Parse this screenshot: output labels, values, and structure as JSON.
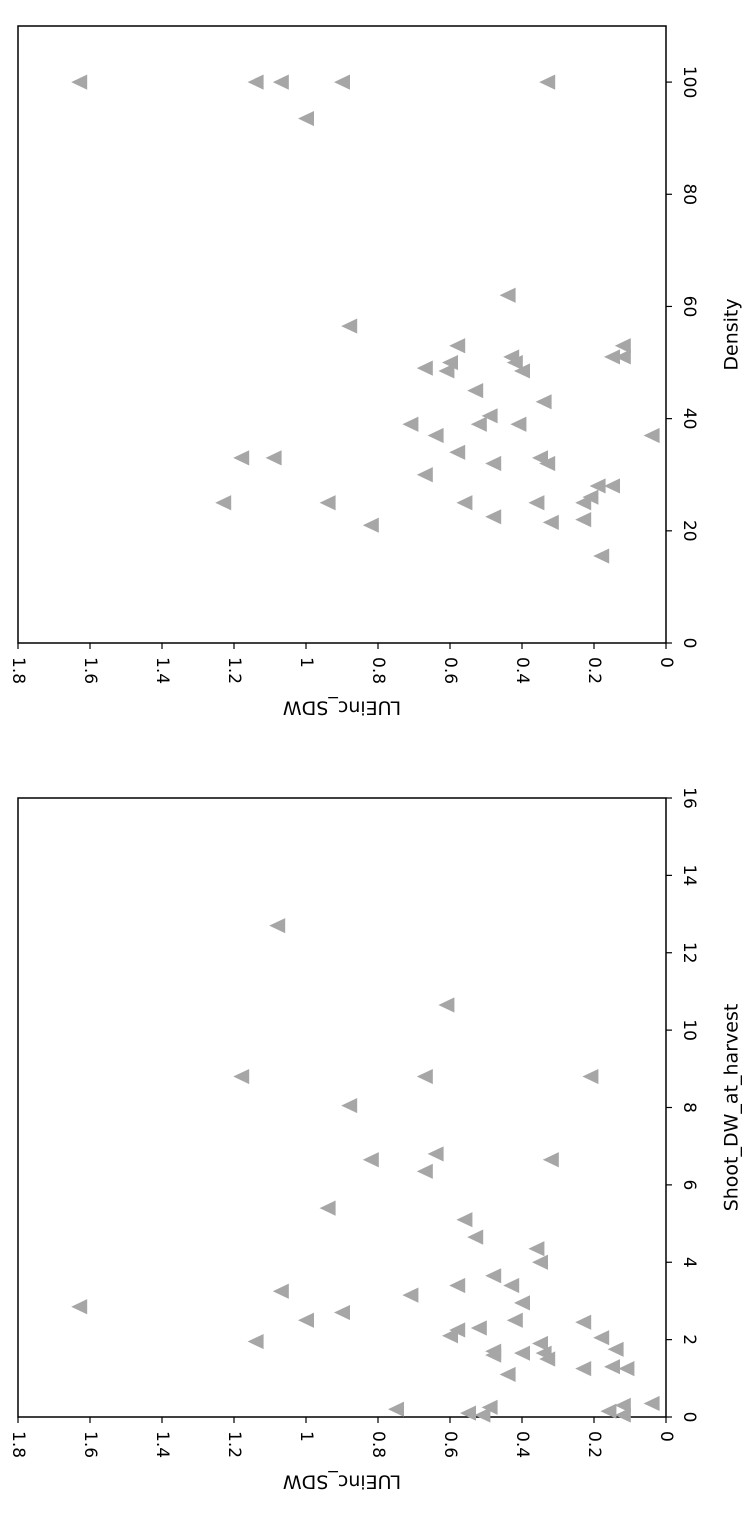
{
  "figure": {
    "rotation": "90 degrees clockwise",
    "marker": "triangle",
    "marker_color": "#a6a6a6",
    "axis_color": "#000000"
  },
  "chart_data": [
    {
      "type": "scatter",
      "title": "",
      "xlabel": "Density",
      "ylabel": "LUEinc_SDW",
      "xlim": [
        0,
        110
      ],
      "ylim": [
        0,
        1.8
      ],
      "xticks": [
        "0",
        "20",
        "40",
        "60",
        "80",
        "100"
      ],
      "yticks": [
        "0",
        "0.2",
        "0.4",
        "0.6",
        "0.8",
        "1",
        "1.2",
        "1.4",
        "1.6",
        "1.8"
      ],
      "grid": false,
      "points": [
        {
          "x": 100,
          "y": 1.63
        },
        {
          "x": 100,
          "y": 1.14
        },
        {
          "x": 100,
          "y": 1.07
        },
        {
          "x": 100,
          "y": 0.9
        },
        {
          "x": 100,
          "y": 0.33
        },
        {
          "x": 93.5,
          "y": 1.0
        },
        {
          "x": 62,
          "y": 0.44
        },
        {
          "x": 56.5,
          "y": 0.88
        },
        {
          "x": 53,
          "y": 0.58
        },
        {
          "x": 53,
          "y": 0.12
        },
        {
          "x": 51,
          "y": 0.43
        },
        {
          "x": 51,
          "y": 0.15
        },
        {
          "x": 51,
          "y": 0.12
        },
        {
          "x": 50,
          "y": 0.6
        },
        {
          "x": 50,
          "y": 0.42
        },
        {
          "x": 49,
          "y": 0.67
        },
        {
          "x": 48.5,
          "y": 0.61
        },
        {
          "x": 48.5,
          "y": 0.4
        },
        {
          "x": 45,
          "y": 0.53
        },
        {
          "x": 43,
          "y": 0.34
        },
        {
          "x": 40.5,
          "y": 0.49
        },
        {
          "x": 39,
          "y": 0.71
        },
        {
          "x": 39,
          "y": 0.52
        },
        {
          "x": 39,
          "y": 0.41
        },
        {
          "x": 37,
          "y": 0.64
        },
        {
          "x": 37,
          "y": 0.04
        },
        {
          "x": 34,
          "y": 0.58
        },
        {
          "x": 33,
          "y": 1.18
        },
        {
          "x": 33,
          "y": 1.09
        },
        {
          "x": 33,
          "y": 0.35
        },
        {
          "x": 32,
          "y": 0.48
        },
        {
          "x": 32,
          "y": 0.33
        },
        {
          "x": 30,
          "y": 0.67
        },
        {
          "x": 28,
          "y": 0.19
        },
        {
          "x": 28,
          "y": 0.15
        },
        {
          "x": 26,
          "y": 0.21
        },
        {
          "x": 25,
          "y": 1.23
        },
        {
          "x": 25,
          "y": 0.94
        },
        {
          "x": 25,
          "y": 0.56
        },
        {
          "x": 25,
          "y": 0.36
        },
        {
          "x": 25,
          "y": 0.23
        },
        {
          "x": 22.5,
          "y": 0.48
        },
        {
          "x": 22,
          "y": 0.23
        },
        {
          "x": 21.5,
          "y": 0.32
        },
        {
          "x": 21,
          "y": 0.82
        },
        {
          "x": 15.5,
          "y": 0.18
        }
      ]
    },
    {
      "type": "scatter",
      "title": "",
      "xlabel": "Shoot_DW_at_harvest",
      "ylabel": "LUEinc_SDW",
      "xlim": [
        0,
        16
      ],
      "ylim": [
        0,
        1.8
      ],
      "xticks": [
        "0",
        "2",
        "4",
        "6",
        "8",
        "10",
        "12",
        "14",
        "16"
      ],
      "yticks": [
        "0",
        "0.2",
        "0.4",
        "0.6",
        "0.8",
        "1",
        "1.2",
        "1.4",
        "1.6",
        "1.8"
      ],
      "grid": false,
      "points": [
        {
          "x": 2.85,
          "y": 1.63
        },
        {
          "x": 12.7,
          "y": 1.08
        },
        {
          "x": 10.65,
          "y": 0.61
        },
        {
          "x": 8.8,
          "y": 1.18
        },
        {
          "x": 8.8,
          "y": 0.67
        },
        {
          "x": 8.8,
          "y": 0.21
        },
        {
          "x": 8.05,
          "y": 0.88
        },
        {
          "x": 6.65,
          "y": 0.82
        },
        {
          "x": 6.65,
          "y": 0.32
        },
        {
          "x": 6.8,
          "y": 0.64
        },
        {
          "x": 6.35,
          "y": 0.67
        },
        {
          "x": 5.4,
          "y": 0.94
        },
        {
          "x": 5.1,
          "y": 0.56
        },
        {
          "x": 4.65,
          "y": 0.53
        },
        {
          "x": 4.35,
          "y": 0.36
        },
        {
          "x": 4.0,
          "y": 0.35
        },
        {
          "x": 3.65,
          "y": 0.48
        },
        {
          "x": 3.4,
          "y": 0.58
        },
        {
          "x": 3.4,
          "y": 0.43
        },
        {
          "x": 3.25,
          "y": 1.07
        },
        {
          "x": 3.15,
          "y": 0.71
        },
        {
          "x": 2.95,
          "y": 0.4
        },
        {
          "x": 2.7,
          "y": 0.9
        },
        {
          "x": 2.5,
          "y": 1.0
        },
        {
          "x": 2.5,
          "y": 0.42
        },
        {
          "x": 2.45,
          "y": 0.23
        },
        {
          "x": 2.3,
          "y": 0.52
        },
        {
          "x": 2.25,
          "y": 0.58
        },
        {
          "x": 2.1,
          "y": 0.6
        },
        {
          "x": 2.05,
          "y": 0.18
        },
        {
          "x": 1.95,
          "y": 1.14
        },
        {
          "x": 1.9,
          "y": 0.35
        },
        {
          "x": 1.75,
          "y": 0.14
        },
        {
          "x": 1.7,
          "y": 0.48
        },
        {
          "x": 1.65,
          "y": 0.4
        },
        {
          "x": 1.65,
          "y": 0.34
        },
        {
          "x": 1.6,
          "y": 0.48
        },
        {
          "x": 1.5,
          "y": 0.33
        },
        {
          "x": 1.3,
          "y": 0.15
        },
        {
          "x": 1.25,
          "y": 0.23
        },
        {
          "x": 1.25,
          "y": 0.11
        },
        {
          "x": 1.1,
          "y": 0.44
        },
        {
          "x": 0.35,
          "y": 0.04
        },
        {
          "x": 0.3,
          "y": 0.12
        },
        {
          "x": 0.25,
          "y": 0.49
        },
        {
          "x": 0.2,
          "y": 0.75
        },
        {
          "x": 0.15,
          "y": 0.16
        },
        {
          "x": 0.1,
          "y": 0.55
        },
        {
          "x": 0.05,
          "y": 0.51
        },
        {
          "x": 0.05,
          "y": 0.12
        }
      ]
    }
  ]
}
